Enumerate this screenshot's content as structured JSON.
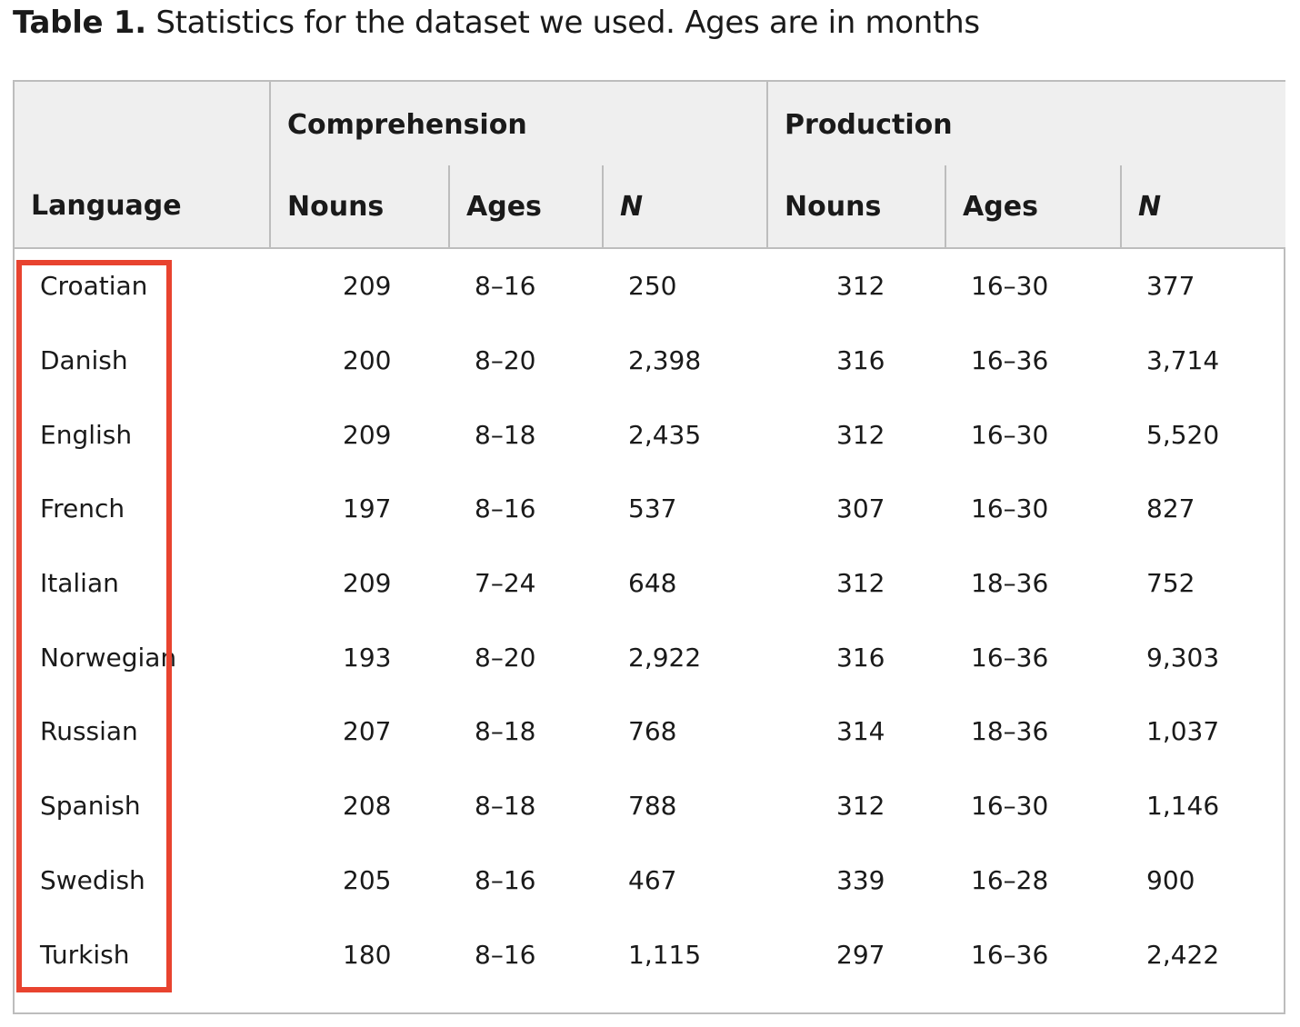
{
  "caption": {
    "label": "Table 1.",
    "text": " Statistics for the dataset we used. Ages are in months"
  },
  "table": {
    "header": {
      "language": "Language",
      "comprehension": "Comprehension",
      "production": "Production",
      "comp_nouns": "Nouns",
      "comp_ages": "Ages",
      "comp_n": "N",
      "prod_nouns": "Nouns",
      "prod_ages": "Ages",
      "prod_n": "N"
    },
    "rows": [
      {
        "language": "Croatian",
        "comp_nouns": "209",
        "comp_ages": "8–16",
        "comp_n": "250",
        "prod_nouns": "312",
        "prod_ages": "16–30",
        "prod_n": "377"
      },
      {
        "language": "Danish",
        "comp_nouns": "200",
        "comp_ages": "8–20",
        "comp_n": "2,398",
        "prod_nouns": "316",
        "prod_ages": "16–36",
        "prod_n": "3,714"
      },
      {
        "language": "English",
        "comp_nouns": "209",
        "comp_ages": "8–18",
        "comp_n": "2,435",
        "prod_nouns": "312",
        "prod_ages": "16–30",
        "prod_n": "5,520"
      },
      {
        "language": "French",
        "comp_nouns": "197",
        "comp_ages": "8–16",
        "comp_n": "537",
        "prod_nouns": "307",
        "prod_ages": "16–30",
        "prod_n": "827"
      },
      {
        "language": "Italian",
        "comp_nouns": "209",
        "comp_ages": "7–24",
        "comp_n": "648",
        "prod_nouns": "312",
        "prod_ages": "18–36",
        "prod_n": "752"
      },
      {
        "language": "Norwegian",
        "comp_nouns": "193",
        "comp_ages": "8–20",
        "comp_n": "2,922",
        "prod_nouns": "316",
        "prod_ages": "16–36",
        "prod_n": "9,303"
      },
      {
        "language": "Russian",
        "comp_nouns": "207",
        "comp_ages": "8–18",
        "comp_n": "768",
        "prod_nouns": "314",
        "prod_ages": "18–36",
        "prod_n": "1,037"
      },
      {
        "language": "Spanish",
        "comp_nouns": "208",
        "comp_ages": "8–18",
        "comp_n": "788",
        "prod_nouns": "312",
        "prod_ages": "16–30",
        "prod_n": "1,146"
      },
      {
        "language": "Swedish",
        "comp_nouns": "205",
        "comp_ages": "8–16",
        "comp_n": "467",
        "prod_nouns": "339",
        "prod_ages": "16–28",
        "prod_n": "900"
      },
      {
        "language": "Turkish",
        "comp_nouns": "180",
        "comp_ages": "8–16",
        "comp_n": "1,115",
        "prod_nouns": "297",
        "prod_ages": "16–36",
        "prod_n": "2,422"
      }
    ]
  },
  "highlight": {
    "color": "#e8432f",
    "target": "language-column"
  }
}
